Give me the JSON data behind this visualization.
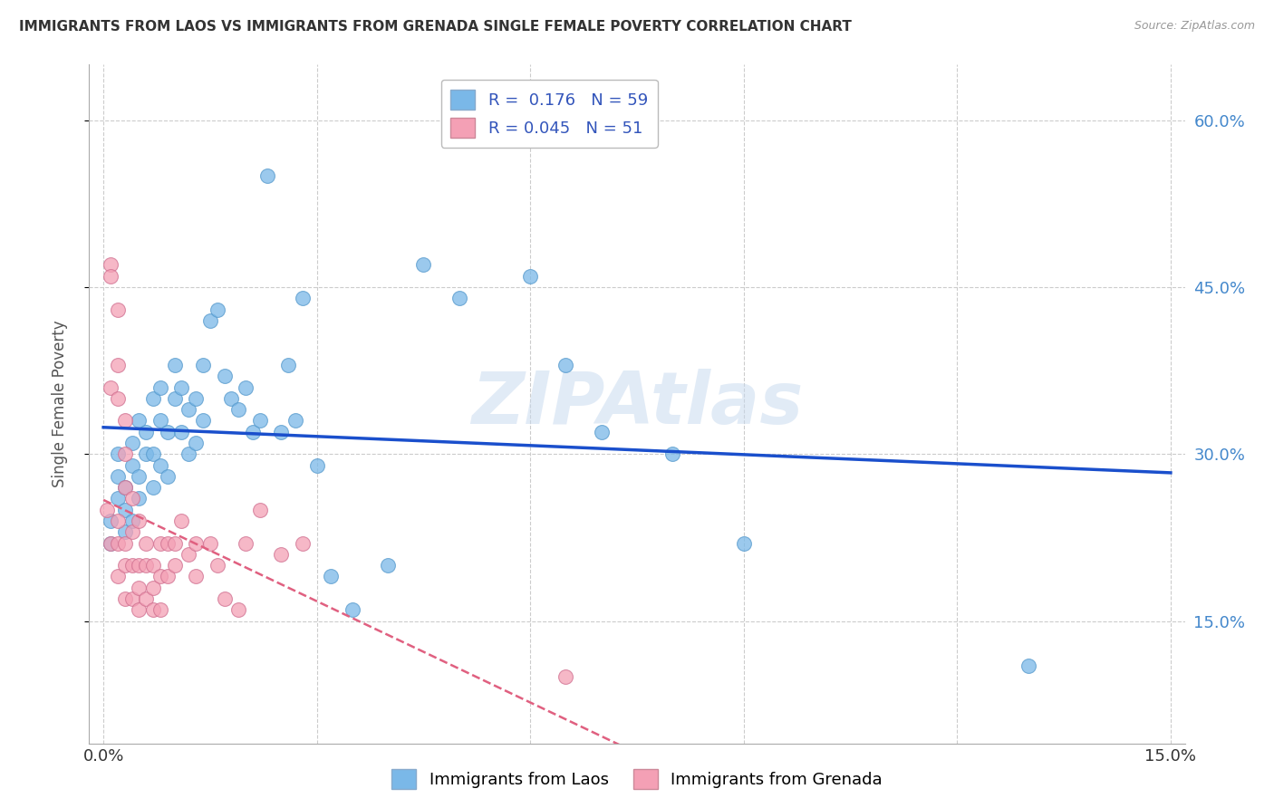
{
  "title": "IMMIGRANTS FROM LAOS VS IMMIGRANTS FROM GRENADA SINGLE FEMALE POVERTY CORRELATION CHART",
  "source": "Source: ZipAtlas.com",
  "ylabel": "Single Female Poverty",
  "xlim": [
    -0.002,
    0.152
  ],
  "ylim": [
    0.04,
    0.65
  ],
  "yticks": [
    0.15,
    0.3,
    0.45,
    0.6
  ],
  "ytick_labels": [
    "15.0%",
    "30.0%",
    "45.0%",
    "60.0%"
  ],
  "legend_labels": [
    "Immigrants from Laos",
    "Immigrants from Grenada"
  ],
  "r_laos": 0.176,
  "n_laos": 59,
  "r_grenada": 0.045,
  "n_grenada": 51,
  "color_laos": "#7ab8e8",
  "color_grenada": "#f4a0b5",
  "trendline_laos_color": "#1a4fcc",
  "trendline_grenada_color": "#e06080",
  "watermark_text": "ZIPAtlas",
  "laos_x": [
    0.001,
    0.001,
    0.002,
    0.002,
    0.002,
    0.003,
    0.003,
    0.003,
    0.004,
    0.004,
    0.004,
    0.005,
    0.005,
    0.005,
    0.006,
    0.006,
    0.007,
    0.007,
    0.007,
    0.008,
    0.008,
    0.008,
    0.009,
    0.009,
    0.01,
    0.01,
    0.011,
    0.011,
    0.012,
    0.012,
    0.013,
    0.013,
    0.014,
    0.014,
    0.015,
    0.016,
    0.017,
    0.018,
    0.019,
    0.02,
    0.021,
    0.022,
    0.023,
    0.025,
    0.026,
    0.027,
    0.028,
    0.03,
    0.032,
    0.035,
    0.04,
    0.045,
    0.05,
    0.06,
    0.065,
    0.07,
    0.08,
    0.09,
    0.13
  ],
  "laos_y": [
    0.24,
    0.22,
    0.26,
    0.3,
    0.28,
    0.25,
    0.23,
    0.27,
    0.29,
    0.24,
    0.31,
    0.26,
    0.28,
    0.33,
    0.3,
    0.32,
    0.35,
    0.27,
    0.3,
    0.33,
    0.36,
    0.29,
    0.32,
    0.28,
    0.35,
    0.38,
    0.32,
    0.36,
    0.34,
    0.3,
    0.31,
    0.35,
    0.33,
    0.38,
    0.42,
    0.43,
    0.37,
    0.35,
    0.34,
    0.36,
    0.32,
    0.33,
    0.55,
    0.32,
    0.38,
    0.33,
    0.44,
    0.29,
    0.19,
    0.16,
    0.2,
    0.47,
    0.44,
    0.46,
    0.38,
    0.32,
    0.3,
    0.22,
    0.11
  ],
  "grenada_x": [
    0.0005,
    0.001,
    0.001,
    0.001,
    0.001,
    0.002,
    0.002,
    0.002,
    0.002,
    0.002,
    0.002,
    0.003,
    0.003,
    0.003,
    0.003,
    0.003,
    0.003,
    0.004,
    0.004,
    0.004,
    0.004,
    0.005,
    0.005,
    0.005,
    0.005,
    0.006,
    0.006,
    0.006,
    0.007,
    0.007,
    0.007,
    0.008,
    0.008,
    0.008,
    0.009,
    0.009,
    0.01,
    0.01,
    0.011,
    0.012,
    0.013,
    0.013,
    0.015,
    0.016,
    0.017,
    0.019,
    0.02,
    0.022,
    0.025,
    0.028,
    0.065
  ],
  "grenada_y": [
    0.25,
    0.47,
    0.46,
    0.36,
    0.22,
    0.43,
    0.38,
    0.35,
    0.24,
    0.22,
    0.19,
    0.33,
    0.3,
    0.27,
    0.22,
    0.2,
    0.17,
    0.26,
    0.23,
    0.2,
    0.17,
    0.24,
    0.2,
    0.18,
    0.16,
    0.22,
    0.2,
    0.17,
    0.2,
    0.18,
    0.16,
    0.22,
    0.19,
    0.16,
    0.22,
    0.19,
    0.22,
    0.2,
    0.24,
    0.21,
    0.22,
    0.19,
    0.22,
    0.2,
    0.17,
    0.16,
    0.22,
    0.25,
    0.21,
    0.22,
    0.1
  ]
}
